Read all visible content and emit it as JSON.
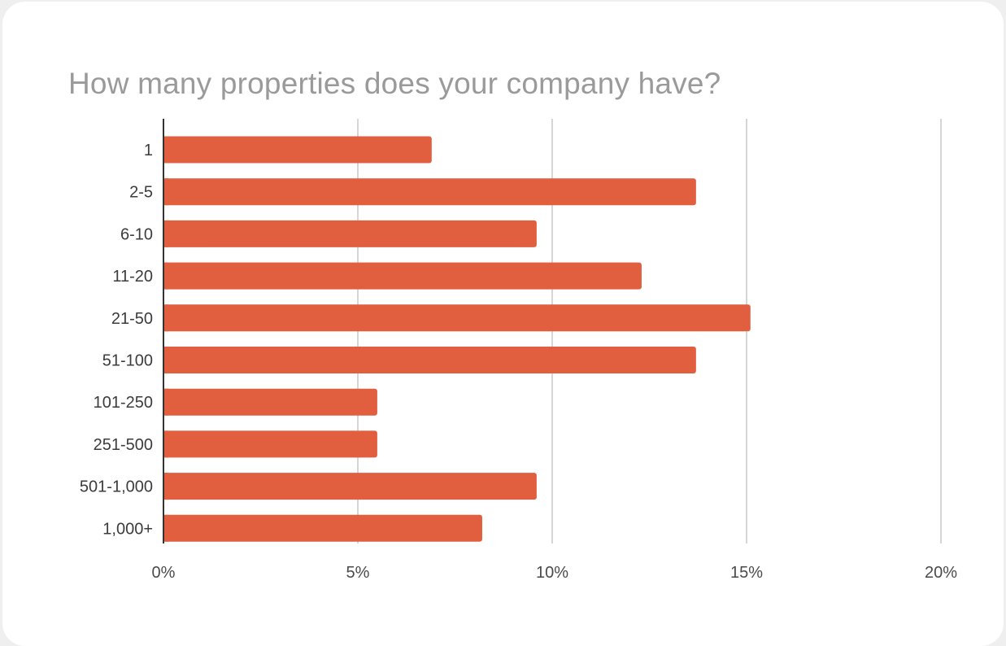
{
  "chart_data": {
    "type": "bar",
    "orientation": "horizontal",
    "title": "How many properties does your company have?",
    "xlabel": "",
    "ylabel": "",
    "categories": [
      "1",
      "2-5",
      "6-10",
      "11-20",
      "21-50",
      "51-100",
      "101-250",
      "251-500",
      "501-1,000",
      "1,000+"
    ],
    "values": [
      6.9,
      13.7,
      9.6,
      12.3,
      15.1,
      13.7,
      5.5,
      5.5,
      9.6,
      8.2
    ],
    "xlim": [
      0,
      20
    ],
    "x_ticks": [
      0,
      5,
      10,
      15,
      20
    ],
    "x_tick_labels": [
      "0%",
      "5%",
      "10%",
      "15%",
      "20%"
    ],
    "grid": "vertical",
    "legend": "none",
    "bar_color": "#e15f3f",
    "grid_color": "#cccccc",
    "axis_color": "#333333"
  }
}
